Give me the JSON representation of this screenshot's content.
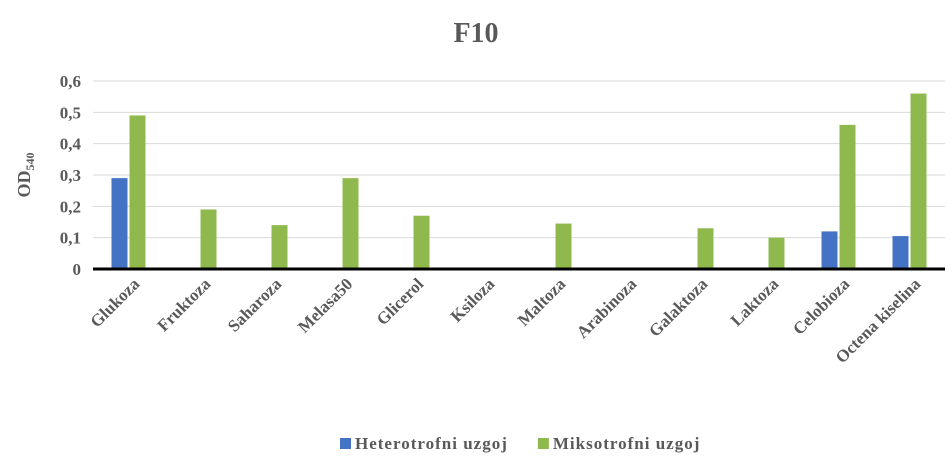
{
  "chart_data": {
    "type": "bar",
    "title": "F10",
    "ylabel": {
      "text": "OD",
      "subscript": "540"
    },
    "categories": [
      "Glukoza",
      "Fruktoza",
      "Saharoza",
      "Melasa50",
      "Glicerol",
      "Ksiloza",
      "Maltoza",
      "Arabinoza",
      "Galaktoza",
      "Laktoza",
      "Celobioza",
      "Octena kiselina"
    ],
    "series": [
      {
        "name": "Heterotrofni uzgoj",
        "color": "#4472c4",
        "values": [
          0.29,
          0,
          0,
          0,
          0,
          0,
          0,
          0,
          0,
          0,
          0.12,
          0.105
        ]
      },
      {
        "name": "Miksotrofni uzgoj",
        "color": "#8fb84d",
        "values": [
          0.49,
          0.19,
          0.14,
          0.29,
          0.17,
          0,
          0.145,
          0,
          0.13,
          0.1,
          0.46,
          0.56
        ]
      }
    ],
    "ylim": [
      0,
      0.6
    ],
    "yticks": [
      0,
      {
        "value": 0.1,
        "label": "0,1"
      },
      {
        "value": 0.2,
        "label": "0,2"
      },
      {
        "value": 0.3,
        "label": "0,3"
      },
      {
        "value": 0.4,
        "label": "0,4"
      },
      {
        "value": 0.5,
        "label": "0,5"
      },
      {
        "value": 0.6,
        "label": "0,6"
      }
    ],
    "grid": true,
    "legend": "bottom"
  }
}
